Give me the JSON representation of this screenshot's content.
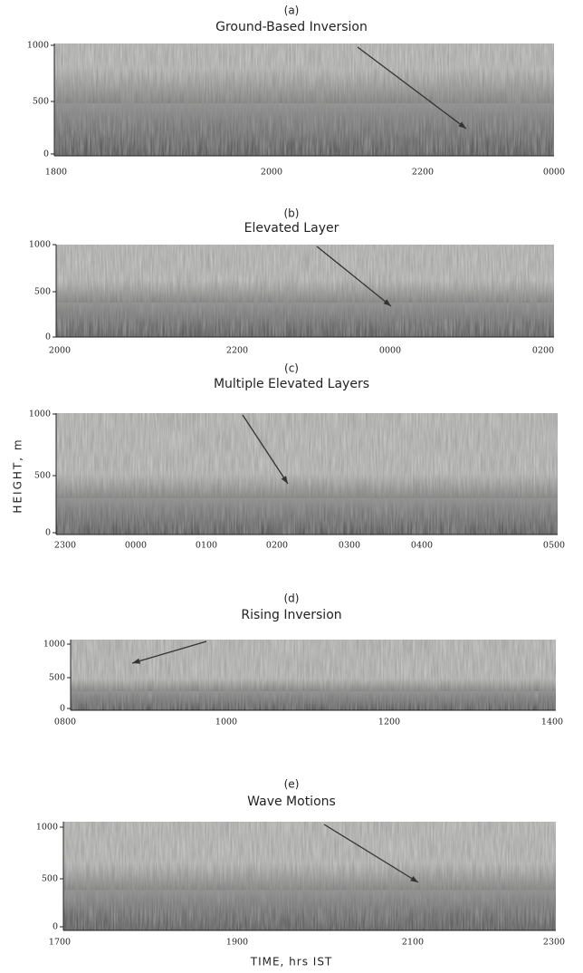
{
  "panels": [
    {
      "label": "(a)",
      "title": "Ground-Based Inversion",
      "yticks": [
        "1000",
        "500",
        "0"
      ],
      "xticks": [
        "1800",
        "2000",
        "2200",
        "0000"
      ]
    },
    {
      "label": "(b)",
      "title": "Elevated Layer",
      "yticks": [
        "1000",
        "500",
        "0"
      ],
      "xticks": [
        "2000",
        "2200",
        "0000",
        "0200"
      ]
    },
    {
      "label": "(c)",
      "title": "Multiple Elevated Layers",
      "yticks": [
        "1000",
        "500",
        "0"
      ],
      "xticks": [
        "2300",
        "0000",
        "0100",
        "0200",
        "0300",
        "0400",
        "0500"
      ]
    },
    {
      "label": "(d)",
      "title": "Rising Inversion",
      "yticks": [
        "1000",
        "500",
        "0"
      ],
      "xticks": [
        "0800",
        "1000",
        "1200",
        "1400"
      ]
    },
    {
      "label": "(e)",
      "title": "Wave Motions",
      "yticks": [
        "1000",
        "500",
        "0"
      ],
      "xticks": [
        "1700",
        "1900",
        "2100",
        "2300"
      ]
    }
  ],
  "y_axis_label": "HEIGHT, m",
  "x_axis_label": "TIME, hrs IST"
}
